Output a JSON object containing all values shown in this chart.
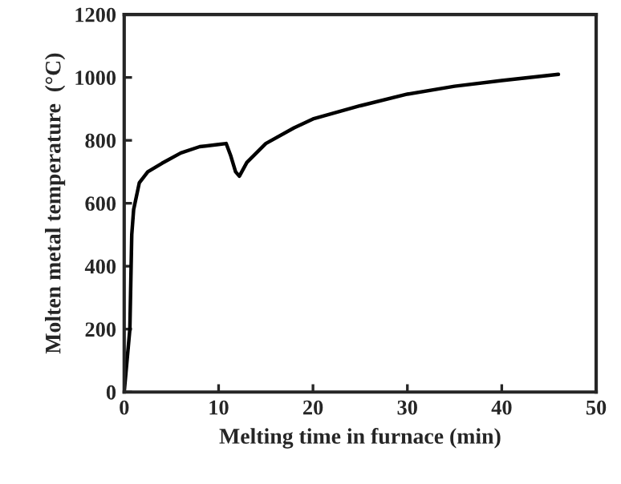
{
  "chart_data": {
    "type": "line",
    "xlabel": "Melting time in furnace (min)",
    "ylabel": "Molten metal temperature  (°C)",
    "x": [
      0,
      0.3,
      0.6,
      0.8,
      1.0,
      1.6,
      2.5,
      4,
      6,
      8,
      10,
      10.8,
      11.3,
      11.8,
      12.2,
      13,
      15,
      18,
      20,
      25,
      30,
      35,
      40,
      46
    ],
    "series": [
      {
        "color": "#000000",
        "values": [
          0,
          100,
          200,
          500,
          580,
          665,
          700,
          727,
          760,
          780,
          787,
          790,
          750,
          700,
          686,
          730,
          790,
          840,
          868,
          910,
          947,
          972,
          990,
          1010
        ]
      }
    ],
    "xlim": [
      0,
      50
    ],
    "ylim": [
      0,
      1200
    ],
    "xticks": [
      0,
      10,
      20,
      30,
      40,
      50
    ],
    "yticks": [
      0,
      200,
      400,
      600,
      800,
      1000,
      1200
    ],
    "grid": false,
    "marker": "none",
    "line_style": "solid"
  }
}
